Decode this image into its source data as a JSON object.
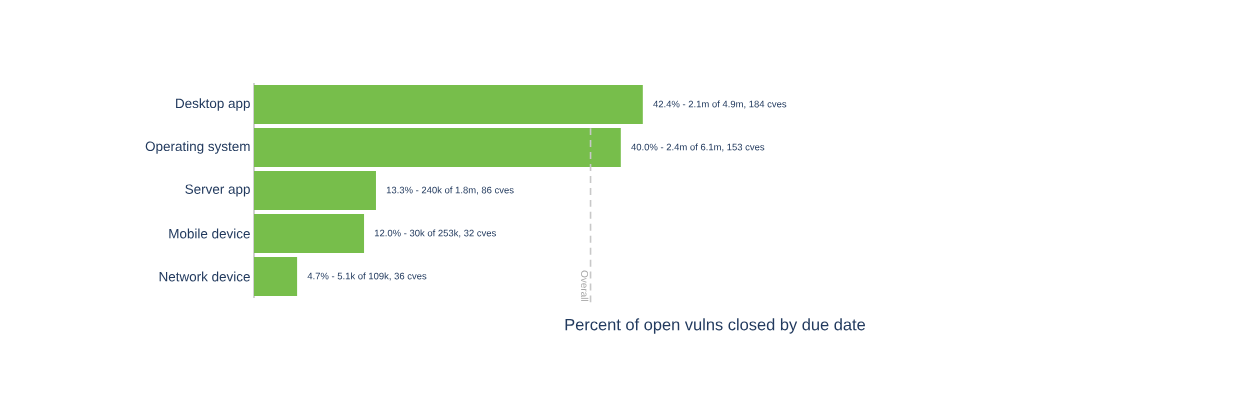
{
  "chart_data": {
    "type": "bar",
    "orientation": "horizontal",
    "categories": [
      "Desktop app",
      "Operating system",
      "Server app",
      "Mobile device",
      "Network device"
    ],
    "values": [
      42.4,
      40.0,
      13.3,
      12.0,
      4.7
    ],
    "value_labels": [
      "42.4% - 2.1m of 4.9m, 184 cves",
      "40.0% - 2.4m of 6.1m, 153 cves",
      "13.3% - 240k of 1.8m, 86 cves",
      "12.0% - 30k of 253k, 32 cves",
      "4.7% - 5.1k of 109k, 36 cves"
    ],
    "color": "#77be4b",
    "xlabel": "Percent of open vulns closed by due date",
    "tick_labels": "y",
    "ref_lines": [
      {
        "axis": "x",
        "value": 36.7,
        "label": "Overall",
        "color": "#c8c8c8",
        "line_style": "dashed"
      }
    ]
  }
}
